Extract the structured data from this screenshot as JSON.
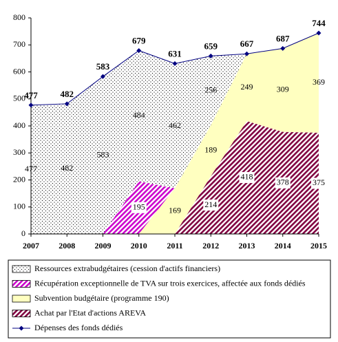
{
  "chart_data": {
    "type": "stacked_area_line",
    "categories": [
      "2007",
      "2008",
      "2009",
      "2010",
      "2011",
      "2012",
      "2013",
      "2014",
      "2015"
    ],
    "ylim": [
      0,
      800
    ],
    "yticks": [
      0,
      100,
      200,
      300,
      400,
      500,
      600,
      700,
      800
    ],
    "series": [
      {
        "name": "Ressources extrabudgétaires (cession d'actifs financiers)",
        "type": "area",
        "pattern": "dots",
        "color": "#000000",
        "values": [
          477,
          482,
          583,
          484,
          462,
          256,
          0,
          0,
          0
        ]
      },
      {
        "name": "Récupération exceptionnelle de TVA sur trois exercices, affectée aux fonds dédiés",
        "type": "area",
        "pattern": "hatch",
        "color": "#cc00cc",
        "values": [
          0,
          0,
          0,
          195,
          0,
          0,
          0,
          0,
          0
        ]
      },
      {
        "name": "Subvention budgétaire (programme 190)",
        "type": "area",
        "pattern": "solid",
        "color": "#ffffc0",
        "values": [
          0,
          0,
          0,
          0,
          169,
          189,
          249,
          309,
          369
        ]
      },
      {
        "name": "Achat par l'Etat d'actions AREVA",
        "type": "area",
        "pattern": "hatch",
        "color": "#800040",
        "values": [
          0,
          0,
          0,
          0,
          0,
          214,
          418,
          378,
          375
        ]
      },
      {
        "name": "Dépenses des fonds dédiés",
        "type": "line",
        "color": "#000080",
        "values": [
          477,
          482,
          583,
          679,
          631,
          659,
          667,
          687,
          744
        ]
      }
    ]
  }
}
